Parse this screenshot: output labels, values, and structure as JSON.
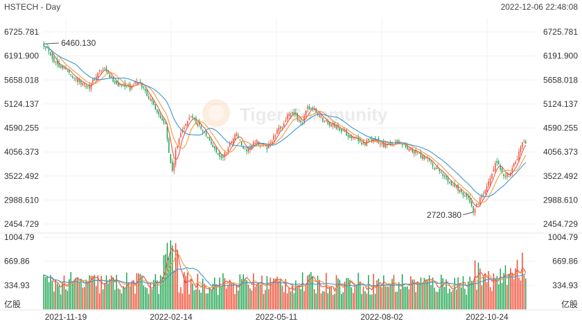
{
  "chart_data": {
    "type": "candlestick",
    "symbol_label": "HSTECH - Day",
    "timestamp": "2022-12-06 22:48:08",
    "watermark": "Tiger Community",
    "price_axis": {
      "ticks": [
        "6725.781",
        "6191.900",
        "5658.018",
        "5124.137",
        "4590.255",
        "4056.373",
        "3522.492",
        "2988.610",
        "2454.729"
      ],
      "range": [
        2454.729,
        6725.781
      ]
    },
    "volume_axis": {
      "ticks": [
        "1004.79",
        "669.86",
        "334.93"
      ],
      "unit": "亿股",
      "range": [
        0,
        1004.79
      ]
    },
    "x_labels": [
      "2021-11-19",
      "2022-02-14",
      "2022-05-11",
      "2022-08-02",
      "2022-10-24"
    ],
    "annotations": {
      "high": "6460.130",
      "low": "2720.380"
    },
    "anchors": [
      [
        0,
        6460
      ],
      [
        3,
        6330
      ],
      [
        6,
        6080
      ],
      [
        9,
        6000
      ],
      [
        12,
        5920
      ],
      [
        15,
        5800
      ],
      [
        18,
        5720
      ],
      [
        21,
        5610
      ],
      [
        24,
        5560
      ],
      [
        27,
        5520
      ],
      [
        30,
        5680
      ],
      [
        33,
        5860
      ],
      [
        36,
        5880
      ],
      [
        39,
        5720
      ],
      [
        42,
        5620
      ],
      [
        45,
        5520
      ],
      [
        48,
        5560
      ],
      [
        51,
        5460
      ],
      [
        54,
        5620
      ],
      [
        57,
        5560
      ],
      [
        60,
        5420
      ],
      [
        63,
        5200
      ],
      [
        66,
        5040
      ],
      [
        69,
        4820
      ],
      [
        72,
        4720
      ],
      [
        74,
        4020
      ],
      [
        76,
        3620
      ],
      [
        78,
        4050
      ],
      [
        81,
        4520
      ],
      [
        84,
        4650
      ],
      [
        87,
        4870
      ],
      [
        90,
        4720
      ],
      [
        93,
        4600
      ],
      [
        96,
        4420
      ],
      [
        99,
        4220
      ],
      [
        102,
        4080
      ],
      [
        105,
        3900
      ],
      [
        108,
        4070
      ],
      [
        111,
        4320
      ],
      [
        114,
        4480
      ],
      [
        117,
        4200
      ],
      [
        120,
        4020
      ],
      [
        123,
        4210
      ],
      [
        126,
        4270
      ],
      [
        129,
        4200
      ],
      [
        132,
        4150
      ],
      [
        135,
        4320
      ],
      [
        138,
        4500
      ],
      [
        141,
        4650
      ],
      [
        144,
        4850
      ],
      [
        147,
        4900
      ],
      [
        150,
        4820
      ],
      [
        153,
        4700
      ],
      [
        156,
        5040
      ],
      [
        159,
        5010
      ],
      [
        162,
        4900
      ],
      [
        165,
        4780
      ],
      [
        168,
        4700
      ],
      [
        171,
        4650
      ],
      [
        174,
        4600
      ],
      [
        177,
        4520
      ],
      [
        180,
        4430
      ],
      [
        183,
        4380
      ],
      [
        186,
        4300
      ],
      [
        189,
        4250
      ],
      [
        192,
        4280
      ],
      [
        195,
        4330
      ],
      [
        198,
        4250
      ],
      [
        201,
        4220
      ],
      [
        204,
        4200
      ],
      [
        207,
        4250
      ],
      [
        210,
        4300
      ],
      [
        213,
        4200
      ],
      [
        216,
        4100
      ],
      [
        219,
        4060
      ],
      [
        222,
        4000
      ],
      [
        225,
        3900
      ],
      [
        228,
        3850
      ],
      [
        231,
        3700
      ],
      [
        234,
        3600
      ],
      [
        237,
        3500
      ],
      [
        240,
        3400
      ],
      [
        243,
        3300
      ],
      [
        246,
        3200
      ],
      [
        249,
        3100
      ],
      [
        252,
        2950
      ],
      [
        254,
        2760
      ],
      [
        256,
        2850
      ],
      [
        258,
        3000
      ],
      [
        261,
        3150
      ],
      [
        264,
        3450
      ],
      [
        267,
        3800
      ],
      [
        270,
        3700
      ],
      [
        273,
        3500
      ],
      [
        276,
        3650
      ],
      [
        279,
        3800
      ],
      [
        282,
        4150
      ],
      [
        284,
        4300
      ],
      [
        285,
        4200
      ]
    ]
  }
}
